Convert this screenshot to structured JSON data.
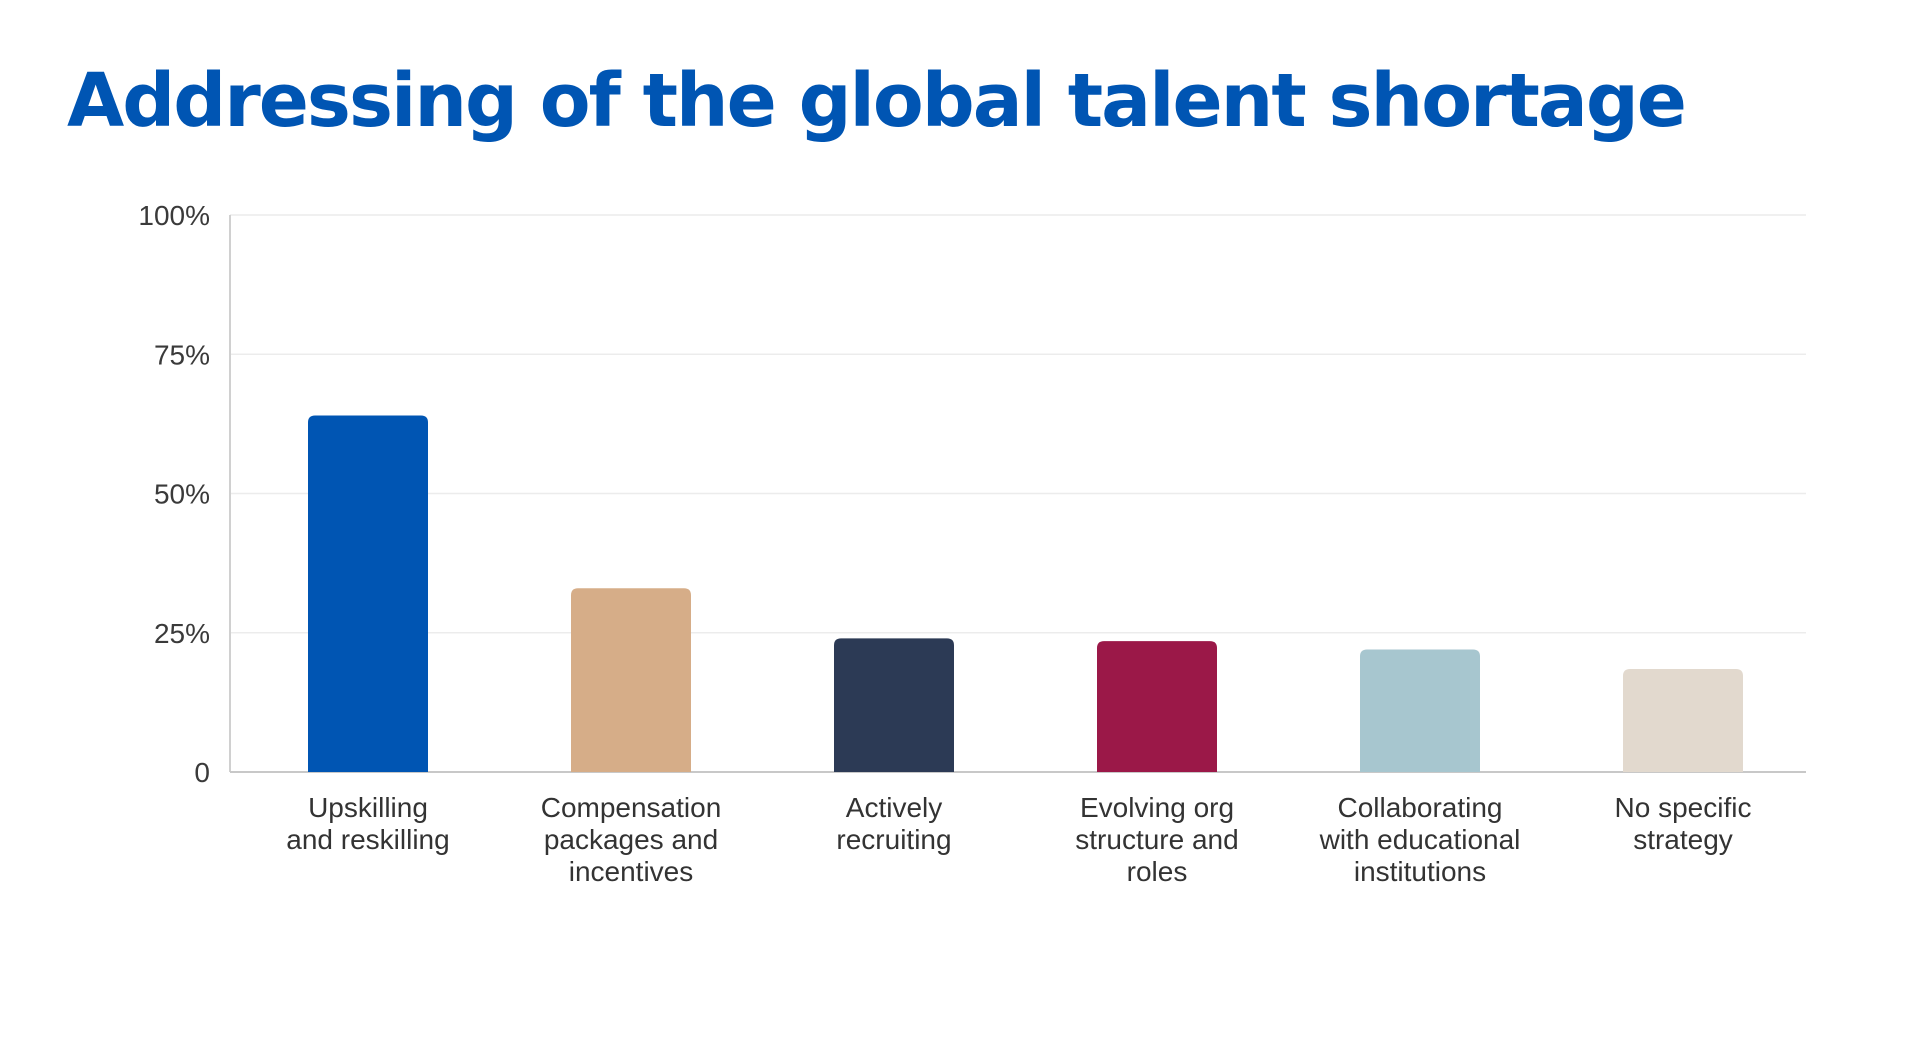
{
  "title": "Addressing of the global talent shortage",
  "chart_data": {
    "type": "bar",
    "title": "Addressing of the global talent shortage",
    "xlabel": "",
    "ylabel": "",
    "ylim": [
      0,
      100
    ],
    "y_ticks": [
      {
        "value": 0,
        "label": "0"
      },
      {
        "value": 25,
        "label": "25%"
      },
      {
        "value": 50,
        "label": "50%"
      },
      {
        "value": 75,
        "label": "75%"
      },
      {
        "value": 100,
        "label": "100%"
      }
    ],
    "grid": true,
    "categories": [
      [
        "Upskilling",
        "and reskilling"
      ],
      [
        "Compensation",
        "packages and",
        "incentives"
      ],
      [
        "Actively",
        "recruiting"
      ],
      [
        "Evolving org",
        "structure and",
        "roles"
      ],
      [
        "Collaborating",
        "with  educational",
        "institutions"
      ],
      [
        "No specific",
        "strategy"
      ]
    ],
    "values": [
      64,
      33,
      24,
      23.5,
      22,
      18.5
    ],
    "colors": [
      "#0055b3",
      "#d6ad88",
      "#2c3a55",
      "#9b1848",
      "#a7c6cf",
      "#e2d9ce"
    ]
  }
}
